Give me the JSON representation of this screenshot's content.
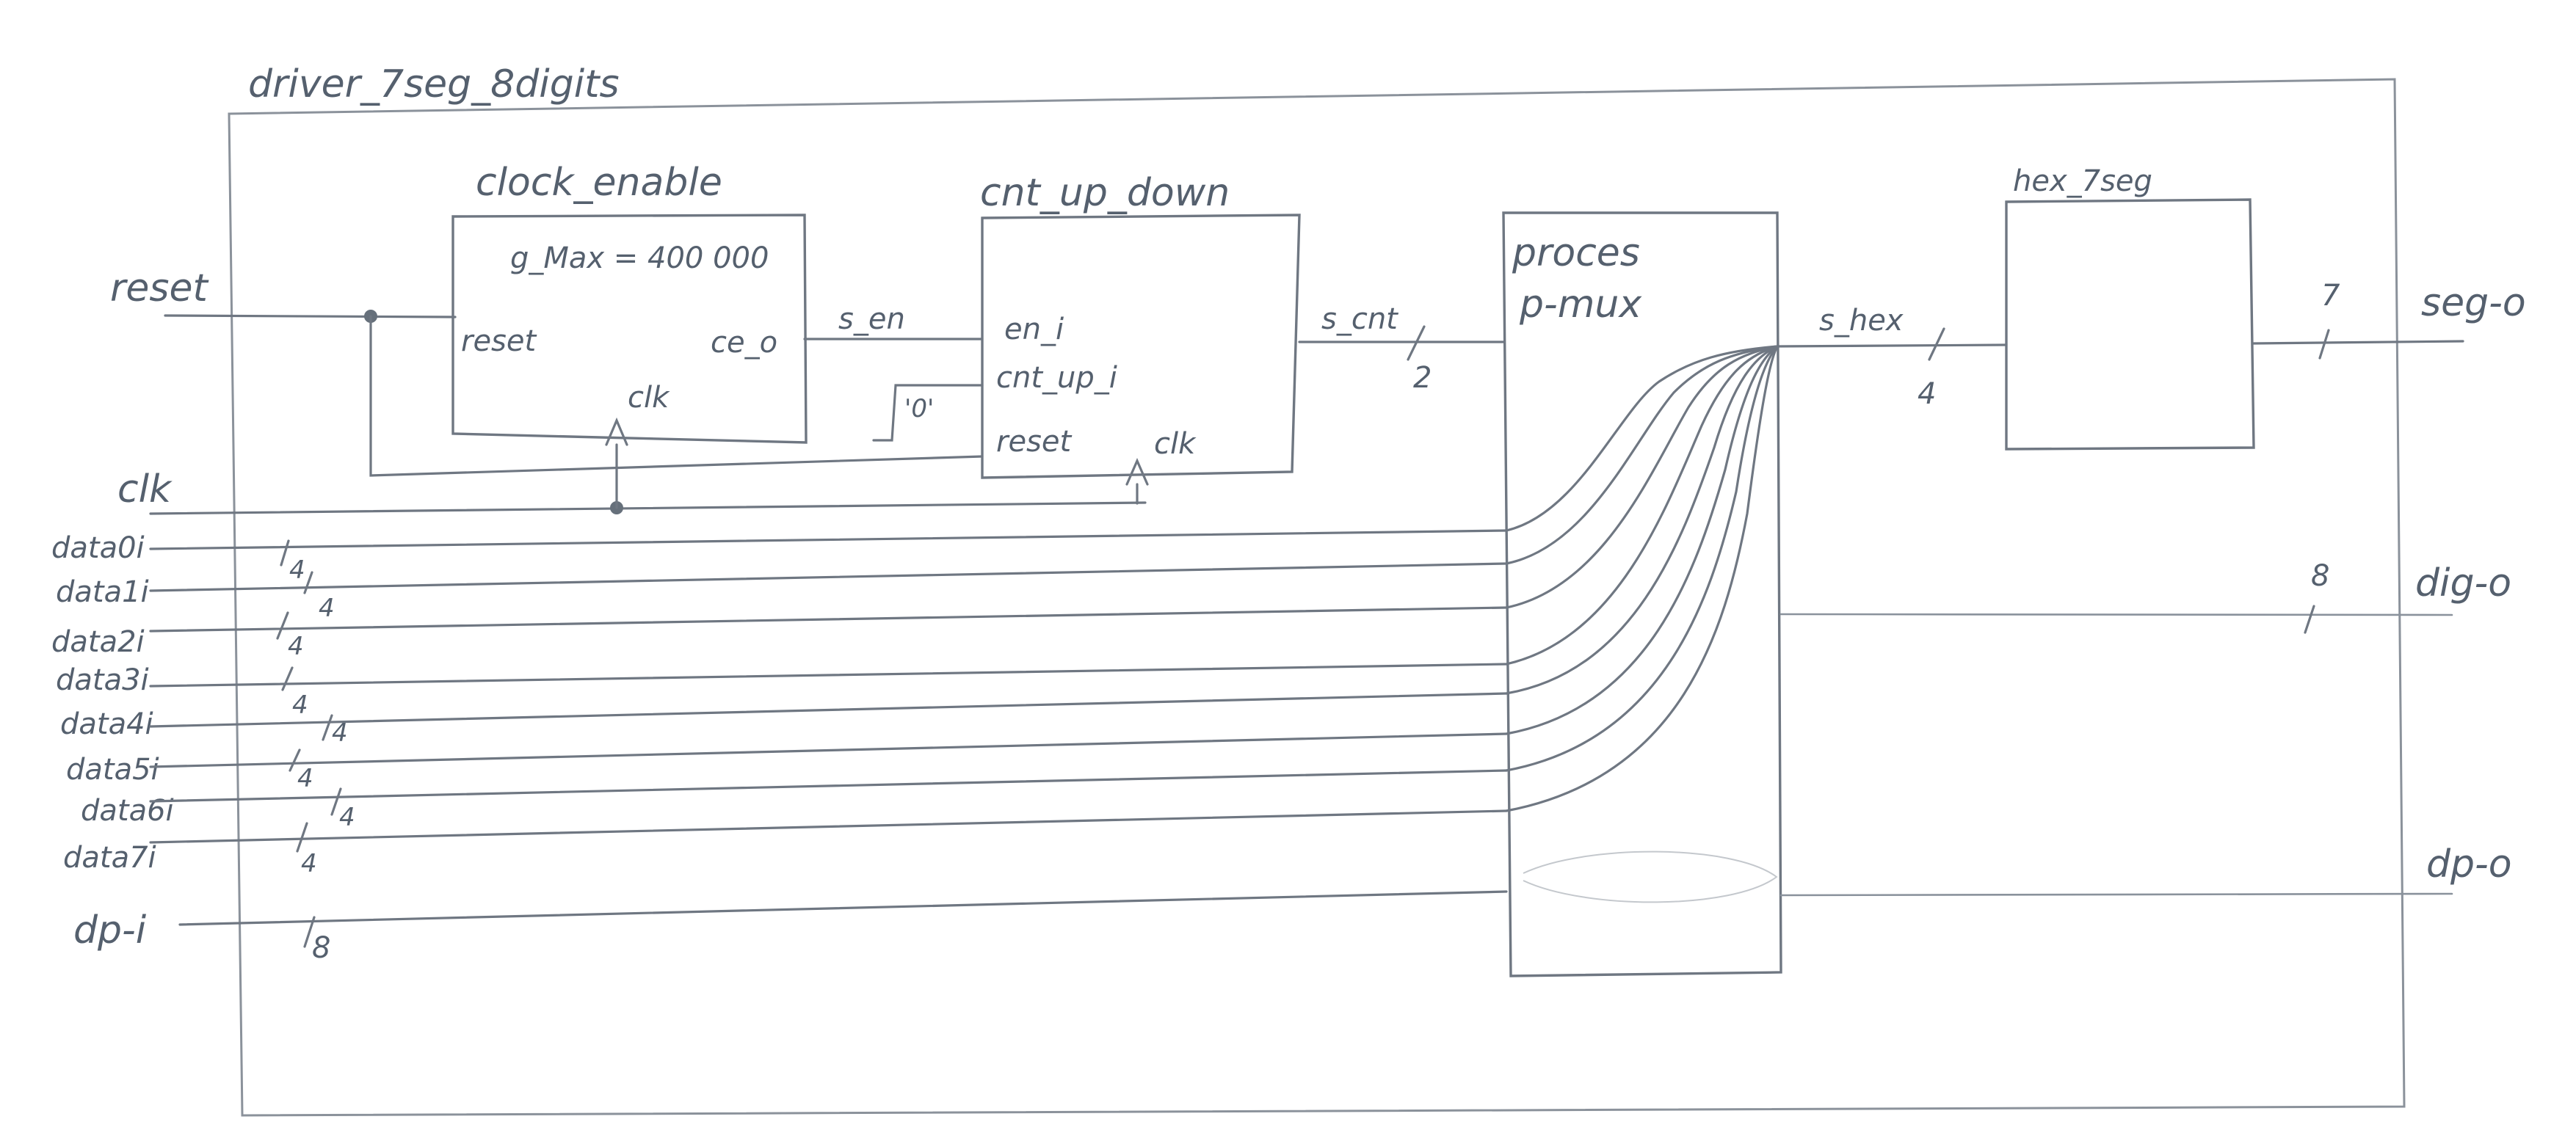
{
  "diagram": {
    "title": "driver_7seg_8digits",
    "clock_enable": {
      "name": "clock_enable",
      "generic": "g_Max = 400 000",
      "port_reset": "reset",
      "port_ce": "ce_o",
      "port_clk": "clk"
    },
    "cnt_up_down": {
      "name": "cnt_up_down",
      "port_en": "en_i",
      "port_cnt_up": "cnt_up_i",
      "port_reset": "reset",
      "port_clk": "clk"
    },
    "process": {
      "line1": "proces",
      "line2": "p-mux"
    },
    "hex_7seg": {
      "name": "hex_7seg"
    },
    "constant": "'0'",
    "inputs": {
      "reset": "reset",
      "clk": "clk",
      "data0": "data0i",
      "data1": "data1i",
      "data2": "data2i",
      "data3": "data3i",
      "data4": "data4i",
      "data5": "data5i",
      "data6": "data6i",
      "data7": "data7i",
      "dp": "dp-i"
    },
    "signals": {
      "s_en": "s_en",
      "s_cnt": "s_cnt",
      "s_hex": "s_hex"
    },
    "outputs": {
      "seg": "seg-o",
      "dig": "dig-o",
      "dp": "dp-o"
    },
    "widths": {
      "cnt": "2",
      "hex": "4",
      "seg": "7",
      "dig": "8",
      "data": "4",
      "dp": "8"
    }
  }
}
